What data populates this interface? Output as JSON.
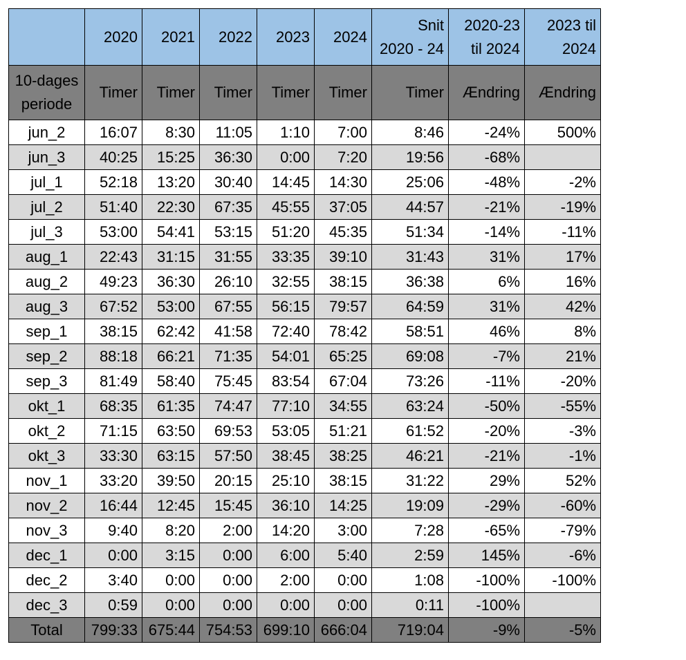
{
  "columns": [
    "",
    "2020",
    "2021",
    "2022",
    "2023",
    "2024",
    "Snit\n2020 - 24",
    "2020-23\ntil 2024",
    "2023 til\n2024"
  ],
  "subheader": [
    "10-dages\nperiode",
    "Timer",
    "Timer",
    "Timer",
    "Timer",
    "Timer",
    "Timer",
    "Ændring",
    "Ændring"
  ],
  "rows": [
    [
      "jun_2",
      "16:07",
      "8:30",
      "11:05",
      "1:10",
      "7:00",
      "8:46",
      "-24%",
      "500%"
    ],
    [
      "jun_3",
      "40:25",
      "15:25",
      "36:30",
      "0:00",
      "7:20",
      "19:56",
      "-68%",
      ""
    ],
    [
      "jul_1",
      "52:18",
      "13:20",
      "30:40",
      "14:45",
      "14:30",
      "25:06",
      "-48%",
      "-2%"
    ],
    [
      "jul_2",
      "51:40",
      "22:30",
      "67:35",
      "45:55",
      "37:05",
      "44:57",
      "-21%",
      "-19%"
    ],
    [
      "jul_3",
      "53:00",
      "54:41",
      "53:15",
      "51:20",
      "45:35",
      "51:34",
      "-14%",
      "-11%"
    ],
    [
      "aug_1",
      "22:43",
      "31:15",
      "31:55",
      "33:35",
      "39:10",
      "31:43",
      "31%",
      "17%"
    ],
    [
      "aug_2",
      "49:23",
      "36:30",
      "26:10",
      "32:55",
      "38:15",
      "36:38",
      "6%",
      "16%"
    ],
    [
      "aug_3",
      "67:52",
      "53:00",
      "67:55",
      "56:15",
      "79:57",
      "64:59",
      "31%",
      "42%"
    ],
    [
      "sep_1",
      "38:15",
      "62:42",
      "41:58",
      "72:40",
      "78:42",
      "58:51",
      "46%",
      "8%"
    ],
    [
      "sep_2",
      "88:18",
      "66:21",
      "71:35",
      "54:01",
      "65:25",
      "69:08",
      "-7%",
      "21%"
    ],
    [
      "sep_3",
      "81:49",
      "58:40",
      "75:45",
      "83:54",
      "67:04",
      "73:26",
      "-11%",
      "-20%"
    ],
    [
      "okt_1",
      "68:35",
      "61:35",
      "74:47",
      "77:10",
      "34:55",
      "63:24",
      "-50%",
      "-55%"
    ],
    [
      "okt_2",
      "71:15",
      "63:50",
      "69:53",
      "53:05",
      "51:21",
      "61:52",
      "-20%",
      "-3%"
    ],
    [
      "okt_3",
      "33:30",
      "63:15",
      "57:50",
      "38:45",
      "38:25",
      "46:21",
      "-21%",
      "-1%"
    ],
    [
      "nov_1",
      "33:20",
      "39:50",
      "20:15",
      "25:10",
      "38:15",
      "31:22",
      "29%",
      "52%"
    ],
    [
      "nov_2",
      "16:44",
      "12:45",
      "15:45",
      "36:10",
      "14:25",
      "19:09",
      "-29%",
      "-60%"
    ],
    [
      "nov_3",
      "9:40",
      "8:20",
      "2:00",
      "14:20",
      "3:00",
      "7:28",
      "-65%",
      "-79%"
    ],
    [
      "dec_1",
      "0:00",
      "3:15",
      "0:00",
      "6:00",
      "5:40",
      "2:59",
      "145%",
      "-6%"
    ],
    [
      "dec_2",
      "3:40",
      "0:00",
      "0:00",
      "2:00",
      "0:00",
      "1:08",
      "-100%",
      "-100%"
    ],
    [
      "dec_3",
      "0:59",
      "0:00",
      "0:00",
      "0:00",
      "0:00",
      "0:11",
      "-100%",
      ""
    ]
  ],
  "total": [
    "Total",
    "799:33",
    "675:44",
    "754:53",
    "699:10",
    "666:04",
    "719:04",
    "-9%",
    "-5%"
  ],
  "colors": {
    "header_blue": "#9dc3e6",
    "header_gray": "#808080",
    "alt_row": "#d9d9d9",
    "row_white": "#ffffff"
  }
}
